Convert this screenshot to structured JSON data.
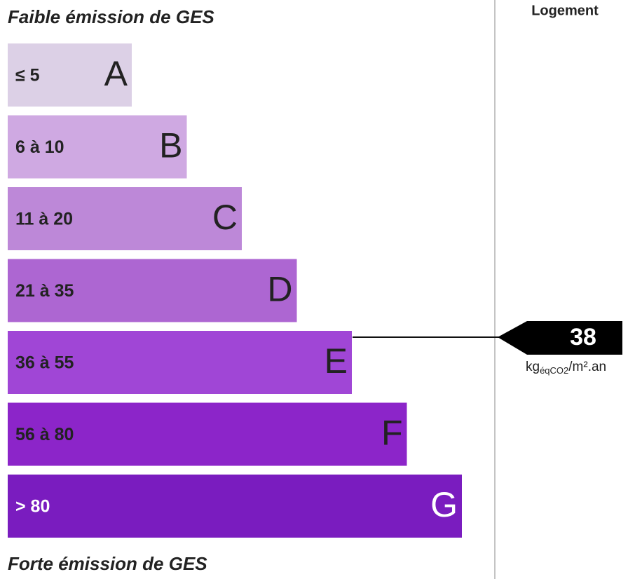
{
  "header": {
    "top": "Faible émission de GES",
    "bottom": "Forte émission de GES",
    "column": "Logement"
  },
  "classes": [
    {
      "range": "≤ 5",
      "letter": "A",
      "color": "#dcd0e6"
    },
    {
      "range": "6 à 10",
      "letter": "B",
      "color": "#cfa9e2"
    },
    {
      "range": "11 à 20",
      "letter": "C",
      "color": "#bd88d8"
    },
    {
      "range": "21 à 35",
      "letter": "D",
      "color": "#ad66d2"
    },
    {
      "range": "36 à 55",
      "letter": "E",
      "color": "#a046d6"
    },
    {
      "range": "56 à 80",
      "letter": "F",
      "color": "#8c25c9"
    },
    {
      "range": "> 80",
      "letter": "G",
      "color": "#7a1cbf"
    }
  ],
  "result": {
    "value": 38,
    "unit": {
      "main": "kg",
      "sub": "éqCO2",
      "tail": "/m².an"
    }
  }
}
